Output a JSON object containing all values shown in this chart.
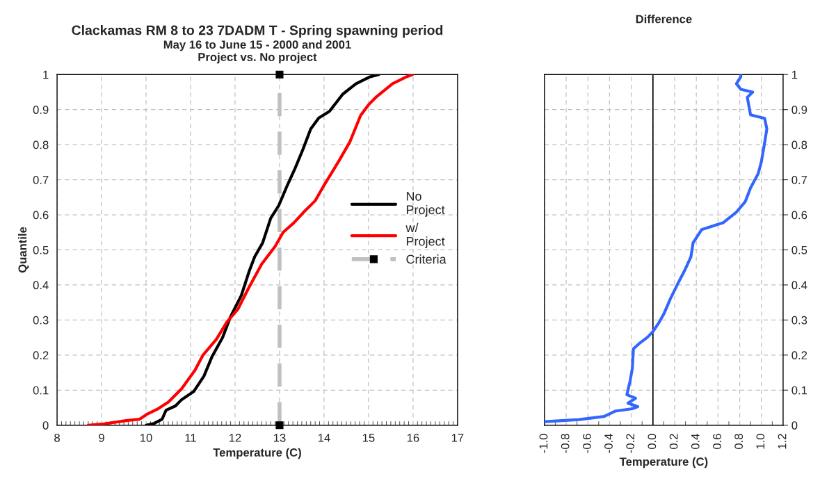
{
  "chart_data": [
    {
      "type": "line",
      "title": "Clackamas RM 8 to 23 7DADM T - Spring spawning period",
      "subtitle": "May 16 to June 15 - 2000 and 2001\nProject vs. No project",
      "xlabel": "Temperature (C)",
      "ylabel": "Quantile",
      "xlim": [
        8,
        17
      ],
      "xticks": [
        8,
        9,
        10,
        11,
        12,
        13,
        14,
        15,
        16,
        17
      ],
      "ylim": [
        0,
        1
      ],
      "yticks": [
        0,
        0.1,
        0.2,
        0.3,
        0.4,
        0.5,
        0.6,
        0.7,
        0.8,
        0.9,
        1
      ],
      "grid": true,
      "legend": "right",
      "series": [
        {
          "name": "No Project",
          "color": "#000000",
          "x": [
            10.0,
            10.18,
            10.36,
            10.45,
            10.66,
            10.8,
            11.07,
            11.3,
            11.48,
            11.72,
            11.9,
            12.14,
            12.32,
            12.44,
            12.62,
            12.8,
            12.98,
            13.16,
            13.34,
            13.52,
            13.7,
            13.88,
            14.12,
            14.42,
            14.72,
            15.02,
            15.23
          ],
          "values": [
            0,
            0.005,
            0.017,
            0.043,
            0.055,
            0.073,
            0.096,
            0.14,
            0.195,
            0.25,
            0.31,
            0.37,
            0.44,
            0.48,
            0.52,
            0.59,
            0.626,
            0.68,
            0.73,
            0.785,
            0.845,
            0.876,
            0.895,
            0.944,
            0.974,
            0.993,
            1.0
          ]
        },
        {
          "name": "w/ Project",
          "color": "#ff0000",
          "x": [
            8.7,
            9.06,
            9.55,
            9.85,
            10.03,
            10.27,
            10.5,
            10.8,
            11.1,
            11.28,
            11.58,
            11.82,
            12.06,
            12.3,
            12.6,
            12.9,
            13.08,
            13.32,
            13.56,
            13.8,
            13.98,
            14.34,
            14.58,
            14.82,
            15.0,
            15.18,
            15.54,
            15.84,
            15.99
          ],
          "values": [
            0,
            0.004,
            0.013,
            0.017,
            0.032,
            0.047,
            0.066,
            0.104,
            0.157,
            0.2,
            0.245,
            0.295,
            0.33,
            0.39,
            0.46,
            0.51,
            0.55,
            0.577,
            0.61,
            0.64,
            0.68,
            0.755,
            0.808,
            0.883,
            0.914,
            0.937,
            0.974,
            0.993,
            1.0
          ]
        },
        {
          "name": "Criteria",
          "color": "#c0c0c0",
          "x": [
            13,
            13
          ],
          "values": [
            0,
            1
          ],
          "marker": "square",
          "line_style": "dashed"
        }
      ]
    },
    {
      "type": "line",
      "title": "Difference",
      "xlabel": "Temperature (C)",
      "xlim": [
        -1.0,
        1.2
      ],
      "xticks": [
        {
          "value": -1,
          "label": "-1.0"
        },
        -0.8,
        -0.6,
        -0.4,
        -0.2,
        {
          "value": 0,
          "label": "0.0"
        },
        0.2,
        0.4,
        0.6,
        0.8,
        {
          "value": 1,
          "label": "1.0"
        },
        1.2
      ],
      "ylim": [
        0,
        1
      ],
      "yticks": [
        0,
        0.1,
        0.2,
        0.3,
        0.4,
        0.5,
        0.6,
        0.7,
        0.8,
        0.9,
        1
      ],
      "grid": true,
      "ref_lines": [
        {
          "axis": "x",
          "value": 0,
          "color": "#000000"
        }
      ],
      "series": [
        {
          "color": "#3366ff",
          "x": [
            -1.0,
            -0.89,
            -0.68,
            -0.45,
            -0.35,
            -0.19,
            -0.14,
            -0.23,
            -0.16,
            -0.24,
            -0.21,
            -0.19,
            -0.18,
            -0.13,
            -0.05,
            0.0,
            0.05,
            0.1,
            0.16,
            0.23,
            0.29,
            0.35,
            0.37,
            0.45,
            0.65,
            0.77,
            0.85,
            0.9,
            0.97,
            1.0,
            1.03,
            1.05,
            1.03,
            0.9,
            0.87,
            0.92,
            0.81,
            0.77,
            0.81,
            0.81
          ],
          "values": [
            0.01,
            0.012,
            0.016,
            0.025,
            0.04,
            0.047,
            0.053,
            0.063,
            0.077,
            0.087,
            0.127,
            0.162,
            0.218,
            0.232,
            0.251,
            0.267,
            0.29,
            0.317,
            0.36,
            0.404,
            0.44,
            0.48,
            0.52,
            0.558,
            0.578,
            0.608,
            0.637,
            0.677,
            0.717,
            0.752,
            0.806,
            0.845,
            0.875,
            0.885,
            0.935,
            0.95,
            0.958,
            0.974,
            0.994,
            1.0
          ]
        }
      ]
    }
  ]
}
